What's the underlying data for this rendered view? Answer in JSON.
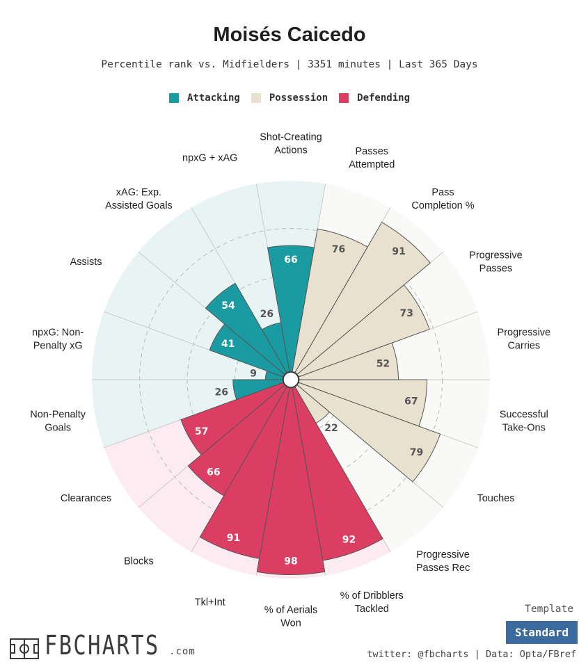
{
  "header": {
    "title": "Moisés Caicedo",
    "subtitle": "Percentile rank vs. Midfielders | 3351 minutes | Last 365 Days"
  },
  "chart_data": {
    "type": "polar-bar",
    "title": "Moisés Caicedo",
    "subtitle": "Percentile rank vs. Midfielders | 3351 minutes | Last 365 Days",
    "value_range": [
      0,
      100
    ],
    "series": [
      {
        "name": "Attacking",
        "color": "#1a9ba1",
        "background": "#e8f4f4"
      },
      {
        "name": "Possession",
        "color": "#e8e1cf",
        "background": "#f9f9f7"
      },
      {
        "name": "Defending",
        "color": "#dc3d63",
        "background": "#fcebf0"
      }
    ],
    "metrics": [
      {
        "label": "Shot-Creating Actions",
        "value": 66,
        "group": "Attacking"
      },
      {
        "label": "Passes Attempted",
        "value": 76,
        "group": "Possession"
      },
      {
        "label": "Pass Completion %",
        "value": 91,
        "group": "Possession"
      },
      {
        "label": "Progressive Passes",
        "value": 73,
        "group": "Possession"
      },
      {
        "label": "Progressive Carries",
        "value": 52,
        "group": "Possession"
      },
      {
        "label": "Successful Take-Ons",
        "value": 67,
        "group": "Possession"
      },
      {
        "label": "Touches",
        "value": 79,
        "group": "Possession"
      },
      {
        "label": "Progressive Passes Rec",
        "value": 22,
        "group": "Possession"
      },
      {
        "label": "% of Dribblers Tackled",
        "value": 92,
        "group": "Defending"
      },
      {
        "label": "% of Aerials Won",
        "value": 98,
        "group": "Defending"
      },
      {
        "label": "Tkl+Int",
        "value": 91,
        "group": "Defending"
      },
      {
        "label": "Blocks",
        "value": 66,
        "group": "Defending"
      },
      {
        "label": "Clearances",
        "value": 57,
        "group": "Defending"
      },
      {
        "label": "Non-Penalty Goals",
        "value": 26,
        "group": "Attacking"
      },
      {
        "label": "npxG: Non-Penalty xG",
        "value": 9,
        "group": "Attacking"
      },
      {
        "label": "Assists",
        "value": 41,
        "group": "Attacking"
      },
      {
        "label": "xAG: Exp. Assisted Goals",
        "value": 54,
        "group": "Attacking"
      },
      {
        "label": "npxG + xAG",
        "value": 26,
        "group": "Attacking"
      }
    ],
    "axis_labels": [
      {
        "lines": [
          "Shot-Creating",
          "Actions"
        ]
      },
      {
        "lines": [
          "Passes",
          "Attempted"
        ]
      },
      {
        "lines": [
          "Pass",
          "Completion %"
        ]
      },
      {
        "lines": [
          "Progressive",
          "Passes"
        ]
      },
      {
        "lines": [
          "Progressive",
          "Carries"
        ]
      },
      {
        "lines": [
          "Successful",
          "Take-Ons"
        ]
      },
      {
        "lines": [
          "Touches"
        ]
      },
      {
        "lines": [
          "Progressive",
          "Passes Rec"
        ]
      },
      {
        "lines": [
          "% of Dribblers",
          "Tackled"
        ]
      },
      {
        "lines": [
          "% of Aerials",
          "Won"
        ]
      },
      {
        "lines": [
          "Tkl+Int"
        ]
      },
      {
        "lines": [
          "Blocks"
        ]
      },
      {
        "lines": [
          "Clearances"
        ]
      },
      {
        "lines": [
          "Non-Penalty",
          "Goals"
        ]
      },
      {
        "lines": [
          "npxG: Non-",
          "Penalty xG"
        ]
      },
      {
        "lines": [
          "Assists"
        ]
      },
      {
        "lines": [
          "xAG: Exp.",
          "Assisted Goals"
        ]
      },
      {
        "lines": [
          "npxG + xAG"
        ]
      }
    ]
  },
  "footer": {
    "logo_text": "FBCHARTS",
    "logo_suffix": ".com",
    "template_label": "Template",
    "template_value": "Standard",
    "credits": "twitter: @fbcharts | Data: Opta/FBref"
  }
}
